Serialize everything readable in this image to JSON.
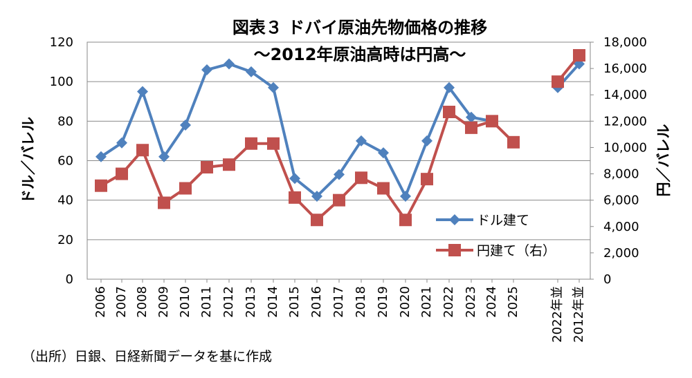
{
  "chart_data": {
    "type": "line",
    "title": "図表３ ドバイ原油先物価格の推移",
    "subtitle": "～2012年原油高時は円高～",
    "ylabel": "ドル／バレル",
    "y2label": "円／バレル",
    "ylim": [
      0,
      120
    ],
    "yticks": [
      "0",
      "20",
      "40",
      "60",
      "80",
      "100",
      "120"
    ],
    "y2lim": [
      0,
      18000
    ],
    "y2ticks": [
      "0",
      "2,000",
      "4,000",
      "6,000",
      "8,000",
      "10,000",
      "12,000",
      "14,000",
      "16,000",
      "18,000"
    ],
    "categories": [
      "2006",
      "2007",
      "2008",
      "2009",
      "2010",
      "2011",
      "2012",
      "2013",
      "2014",
      "2015",
      "2016",
      "2017",
      "2018",
      "2019",
      "2020",
      "2021",
      "2022",
      "2023",
      "2024",
      "2025",
      "2022年並",
      "2012年並"
    ],
    "series": [
      {
        "name": "ドル建て",
        "axis": "left",
        "color": "#4F81BD",
        "marker": "diamond",
        "values": [
          62,
          69,
          95,
          62,
          78,
          106,
          109,
          105,
          97,
          51,
          42,
          53,
          70,
          64,
          42,
          70,
          97,
          82,
          80,
          null,
          97,
          109
        ]
      },
      {
        "name": "円建て（右）",
        "axis": "right",
        "color": "#C0504D",
        "marker": "square",
        "values": [
          7100,
          8000,
          9800,
          5800,
          6900,
          8500,
          8700,
          10300,
          10300,
          6200,
          4500,
          6000,
          7700,
          6900,
          4500,
          7600,
          12700,
          11500,
          12000,
          10400,
          15000,
          17000
        ]
      }
    ]
  },
  "source_note": "（出所）日銀、日経新聞データを基に作成"
}
